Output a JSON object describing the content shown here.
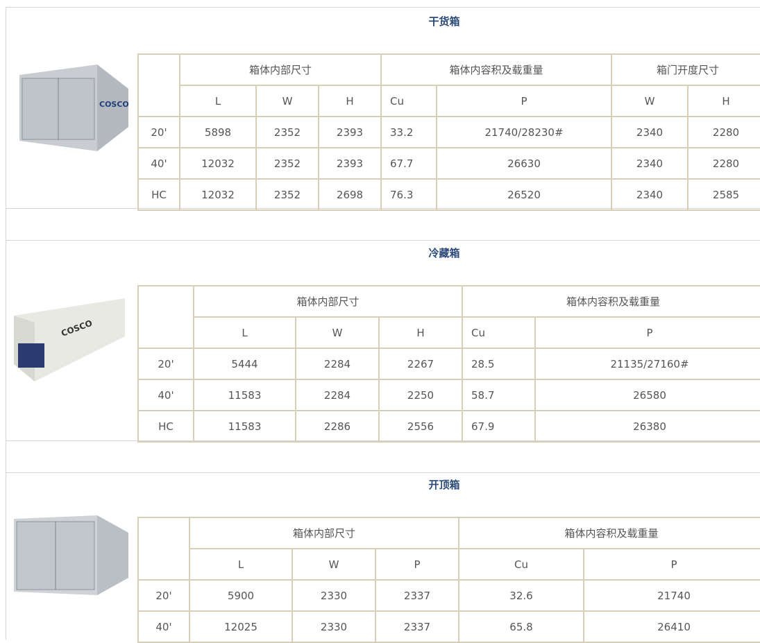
{
  "sections": [
    {
      "title": "干货箱",
      "header_groups": [
        "箱体内部尺寸",
        "箱体内容积及载重量",
        "箱门开度尺寸"
      ],
      "subheaders": [
        "L",
        "W",
        "H",
        "Cu",
        "P",
        "W",
        "H"
      ],
      "rows": [
        [
          "20'",
          "5898",
          "2352",
          "2393",
          "33.2",
          "21740/28230#",
          "2340",
          "2280"
        ],
        [
          "40'",
          "12032",
          "2352",
          "2393",
          "67.7",
          "26630",
          "2340",
          "2280"
        ],
        [
          "HC",
          "12032",
          "2352",
          "2698",
          "76.3",
          "26520",
          "2340",
          "2585"
        ]
      ]
    },
    {
      "title": "冷藏箱",
      "header_groups": [
        "箱体内部尺寸",
        "箱体内容积及载重量"
      ],
      "subheaders": [
        "L",
        "W",
        "H",
        "Cu",
        "P"
      ],
      "rows": [
        [
          "20'",
          "5444",
          "2284",
          "2267",
          "28.5",
          "21135/27160#"
        ],
        [
          "40'",
          "11583",
          "2284",
          "2250",
          "58.7",
          "26580"
        ],
        [
          "HC",
          "11583",
          "2286",
          "2556",
          "67.9",
          "26380"
        ]
      ]
    },
    {
      "title": "开顶箱",
      "header_groups": [
        "箱体内部尺寸",
        "箱体内容积及载重量"
      ],
      "subheaders": [
        "L",
        "W",
        "P",
        "Cu",
        "P"
      ],
      "rows": [
        [
          "20'",
          "5900",
          "2330",
          "2337",
          "32.6",
          "21740"
        ],
        [
          "40'",
          "12025",
          "2330",
          "2337",
          "65.8",
          "26410"
        ]
      ]
    }
  ]
}
